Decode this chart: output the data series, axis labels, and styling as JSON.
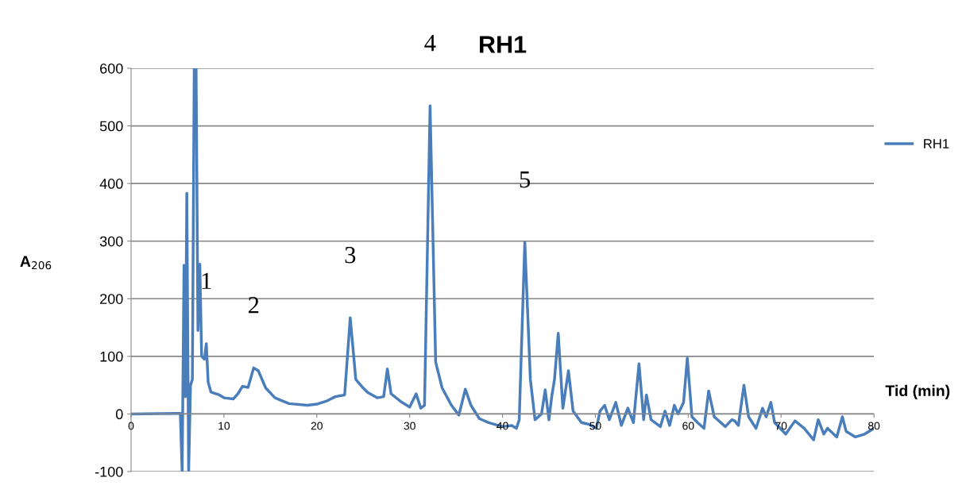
{
  "chart_data": {
    "type": "line",
    "title": "RH1",
    "xlabel": "Tid (min)",
    "ylabel": "A$_{206}$",
    "xlim": [
      0,
      80
    ],
    "xticks": [
      0,
      10,
      20,
      30,
      40,
      50,
      60,
      70,
      80
    ],
    "ylim": [
      -100,
      600
    ],
    "yticks": [
      -100,
      0,
      100,
      200,
      300,
      400,
      500,
      600
    ],
    "grid": "y",
    "legend": "right",
    "line_style": "solid",
    "marker": "none",
    "annotations": [
      {
        "text": "1",
        "x": 8.1,
        "y": 122
      },
      {
        "text": "2",
        "x": 13.2,
        "y": 80
      },
      {
        "text": "3",
        "x": 23.6,
        "y": 167
      },
      {
        "text": "4",
        "x": 32.2,
        "y": 535
      },
      {
        "text": "5",
        "x": 42.4,
        "y": 298
      }
    ],
    "series": [
      {
        "name": "RH1",
        "color": "#4a7ebb",
        "x": [
          0,
          5,
          5.3,
          5.5,
          5.7,
          5.85,
          6.0,
          6.2,
          6.4,
          6.6,
          6.8,
          7.0,
          7.2,
          7.4,
          7.6,
          7.9,
          8.1,
          8.3,
          8.6,
          9.5,
          10,
          11,
          11.5,
          12,
          12.6,
          13.2,
          13.7,
          14.5,
          15.5,
          17,
          19,
          20,
          21,
          22,
          23,
          23.6,
          24.2,
          25,
          25.5,
          26.5,
          27.2,
          27.6,
          28,
          29,
          30,
          30.7,
          31.2,
          31.6,
          32.2,
          32.8,
          33.5,
          34.5,
          35.3,
          36,
          36.6,
          37.5,
          38.5,
          40,
          41,
          41.5,
          41.8,
          42.4,
          43,
          43.5,
          44.2,
          44.6,
          45,
          45.3,
          45.6,
          46,
          46.5,
          47.1,
          47.6,
          48.5,
          49.3,
          50.1,
          50.5,
          51,
          51.5,
          52.2,
          52.8,
          53.5,
          54.1,
          54.7,
          55.2,
          55.5,
          56,
          57,
          57.5,
          58,
          58.5,
          58.9,
          59.5,
          59.9,
          60.4,
          61,
          61.7,
          62.2,
          62.8,
          64,
          64.7,
          65,
          65.4,
          66,
          66.5,
          67.3,
          68,
          68.4,
          68.9,
          69.3,
          70.5,
          71.5,
          72.5,
          73.5,
          74,
          74.6,
          75,
          76,
          76.6,
          77,
          78,
          79,
          80
        ],
        "values": [
          0,
          1,
          1,
          -100,
          258,
          30,
          383,
          -100,
          50,
          60,
          600,
          600,
          145,
          260,
          100,
          95,
          122,
          55,
          38,
          33,
          28,
          26,
          35,
          48,
          46,
          80,
          75,
          45,
          28,
          18,
          15,
          17,
          22,
          30,
          33,
          167,
          60,
          45,
          37,
          28,
          30,
          78,
          35,
          22,
          12,
          35,
          10,
          15,
          535,
          90,
          45,
          15,
          -2,
          43,
          15,
          -8,
          -15,
          -22,
          -20,
          -25,
          -10,
          298,
          60,
          -10,
          0,
          42,
          -10,
          30,
          60,
          140,
          10,
          75,
          5,
          -15,
          -18,
          -25,
          5,
          15,
          -10,
          20,
          -20,
          10,
          -15,
          87,
          -10,
          33,
          -10,
          -22,
          5,
          -20,
          15,
          0,
          20,
          97,
          -5,
          -15,
          -25,
          40,
          -5,
          -22,
          -10,
          -12,
          -20,
          50,
          -5,
          -25,
          10,
          -5,
          20,
          -15,
          -35,
          -12,
          -25,
          -45,
          -10,
          -35,
          -25,
          -40,
          -5,
          -30,
          -40,
          -35,
          -25
        ]
      }
    ]
  }
}
